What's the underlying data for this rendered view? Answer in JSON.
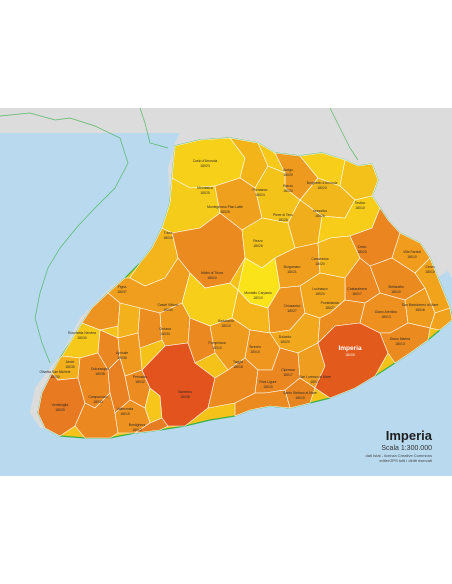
{
  "legend": {
    "title": "Imperia",
    "scale": "Scala 1:300.000",
    "credit1": "dati Istat - licenza Creative Commons",
    "credit2": "editerGPS tutti i diritti riservati"
  },
  "colors": {
    "sea": "#b9d9ee",
    "land_outside": "#dcdcdc",
    "borders": "#ffffff",
    "outer_border": "#3bb24b"
  },
  "capital": {
    "name": "Imperia",
    "code": "18100"
  },
  "municipalities": [
    {
      "name": "Cosio d'Arroscia",
      "code": "18023"
    },
    {
      "name": "Mendatica",
      "code": "18025"
    },
    {
      "name": "Montegrosso Pian Latte",
      "code": "18025"
    },
    {
      "name": "Pornassio",
      "code": "18024"
    },
    {
      "name": "Aurigo",
      "code": "18020"
    },
    {
      "name": "Ranzo",
      "code": "18020"
    },
    {
      "name": "Borghetto d'Arroscia",
      "code": "18020"
    },
    {
      "name": "Vessalico",
      "code": "18026"
    },
    {
      "name": "Pieve di Teco",
      "code": "18026"
    },
    {
      "name": "Rezzo",
      "code": "18026"
    },
    {
      "name": "Triora",
      "code": "18010"
    },
    {
      "name": "Badalucco",
      "code": "18010"
    },
    {
      "name": "Molini di Triora",
      "code": "18010"
    },
    {
      "name": "Montalto Carpasio",
      "code": "18010"
    },
    {
      "name": "Borgomaro",
      "code": "18021"
    },
    {
      "name": "Caravonica",
      "code": "18020"
    },
    {
      "name": "Lucinasco",
      "code": "18020"
    },
    {
      "name": "Chiusanico",
      "code": "18027"
    },
    {
      "name": "Pigna",
      "code": "18037"
    },
    {
      "name": "Castel Vittorio",
      "code": "18030"
    },
    {
      "name": "Apricale",
      "code": "18035"
    },
    {
      "name": "Perinaldo",
      "code": "18032"
    },
    {
      "name": "Dolceacqua",
      "code": "18035"
    },
    {
      "name": "Camporosso",
      "code": "18033"
    },
    {
      "name": "Vallecrosia",
      "code": "18019"
    },
    {
      "name": "Bordighera",
      "code": "18012"
    },
    {
      "name": "Ventimiglia",
      "code": "18039"
    },
    {
      "name": "Airole",
      "code": "18030"
    },
    {
      "name": "Olivetta San Michele",
      "code": "18030"
    },
    {
      "name": "Rocchetta Nervina",
      "code": "18030"
    },
    {
      "name": "Sanremo",
      "code": "18038"
    },
    {
      "name": "Ceriana",
      "code": "18034"
    },
    {
      "name": "Taggia",
      "code": "18018"
    },
    {
      "name": "Riva Ligure",
      "code": "18015"
    },
    {
      "name": "Santo Stefano al Mare",
      "code": "18010"
    },
    {
      "name": "Cipressa",
      "code": "18017"
    },
    {
      "name": "San Lorenzo al Mare",
      "code": "18017"
    },
    {
      "name": "Dolcedo",
      "code": "18020"
    },
    {
      "name": "Pontedassio",
      "code": "18027"
    },
    {
      "name": "Diano Marina",
      "code": "18013"
    },
    {
      "name": "San Bartolomeo al Mare",
      "code": "18016"
    },
    {
      "name": "Cervo",
      "code": "18010"
    },
    {
      "name": "Villa Faraldi",
      "code": "18010"
    },
    {
      "name": "Diano Arentino",
      "code": "18013"
    },
    {
      "name": "Stellanello",
      "code": "18020"
    },
    {
      "name": "Testico",
      "code": "18010"
    },
    {
      "name": "Cesio",
      "code": "18020"
    },
    {
      "name": "Costarainera",
      "code": "18017"
    },
    {
      "name": "Terzorio",
      "code": "18010"
    },
    {
      "name": "Pompeiana",
      "code": "18010"
    }
  ]
}
